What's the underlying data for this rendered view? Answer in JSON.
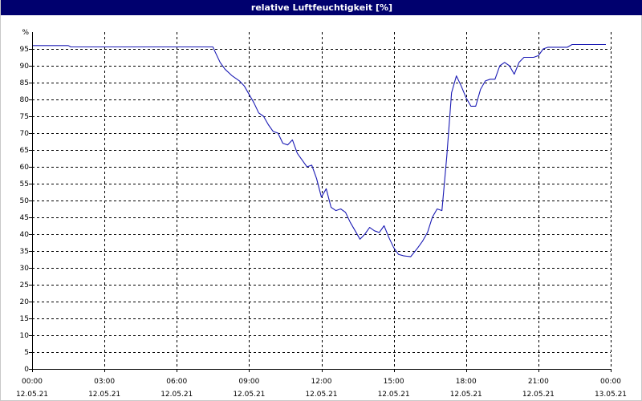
{
  "title": "relative Luftfeuchtigkeit [%]",
  "colors": {
    "title_bg": "#00006e",
    "title_fg": "#ffffff",
    "line": "#1a1ab4",
    "grid": "#000000"
  },
  "chart_data": {
    "type": "line",
    "title": "relative Luftfeuchtigkeit [%]",
    "ylabel": "%",
    "ylim": [
      0,
      100
    ],
    "yticks": [
      0,
      5,
      10,
      15,
      20,
      25,
      30,
      35,
      40,
      45,
      50,
      55,
      60,
      65,
      70,
      75,
      80,
      85,
      90,
      95
    ],
    "xlim": [
      0,
      24
    ],
    "x_unit": "hours since 12.05.21 00:00",
    "xticks": [
      {
        "x": 0,
        "time": "00:00",
        "date": "12.05.21"
      },
      {
        "x": 3,
        "time": "03:00",
        "date": "12.05.21"
      },
      {
        "x": 6,
        "time": "06:00",
        "date": "12.05.21"
      },
      {
        "x": 9,
        "time": "09:00",
        "date": "12.05.21"
      },
      {
        "x": 12,
        "time": "12:00",
        "date": "12.05.21"
      },
      {
        "x": 15,
        "time": "15:00",
        "date": "12.05.21"
      },
      {
        "x": 18,
        "time": "18:00",
        "date": "12.05.21"
      },
      {
        "x": 21,
        "time": "21:00",
        "date": "12.05.21"
      },
      {
        "x": 24,
        "time": "00:00",
        "date": "13.05.21"
      }
    ],
    "grid": true,
    "series": [
      {
        "x": [
          0,
          1.5,
          1.6,
          7.5,
          7.6,
          7.8,
          8.0,
          8.3,
          8.6,
          8.8,
          9.0,
          9.2,
          9.4,
          9.6,
          9.8,
          10.0,
          10.2,
          10.4,
          10.6,
          10.8,
          11.0,
          11.2,
          11.4,
          11.6,
          11.8,
          12.0,
          12.2,
          12.4,
          12.6,
          12.8,
          13.0,
          13.2,
          13.4,
          13.6,
          13.8,
          14.0,
          14.2,
          14.4,
          14.6,
          14.8,
          15.0,
          15.2,
          15.4,
          15.7,
          16.0,
          16.2,
          16.4,
          16.6,
          16.8,
          17.0,
          17.2,
          17.4,
          17.6,
          17.8,
          18.0,
          18.2,
          18.4,
          18.6,
          18.8,
          19.0,
          19.2,
          19.4,
          19.6,
          19.8,
          20.0,
          20.2,
          20.4,
          20.6,
          20.8,
          21.0,
          21.2,
          21.4,
          21.6,
          21.8,
          22.0,
          22.2,
          22.4,
          22.6,
          23.0,
          23.4,
          23.8
        ],
        "y": [
          96,
          96,
          95.6,
          95.6,
          94,
          91,
          89,
          87,
          85.5,
          84,
          81.5,
          79,
          76,
          75,
          72.5,
          70.5,
          70,
          67,
          66.5,
          68,
          64,
          62,
          60,
          60.5,
          56.5,
          51,
          53.5,
          48,
          47,
          47.5,
          46.5,
          43.5,
          41,
          38.5,
          40,
          42,
          41,
          40.5,
          42.5,
          39,
          36,
          34,
          33.6,
          33.3,
          36,
          38,
          40.5,
          45,
          47.5,
          47,
          63,
          82,
          87,
          84,
          80.5,
          78,
          78,
          83,
          85.5,
          86,
          86,
          90,
          91,
          90,
          87.5,
          91,
          92.5,
          92.5,
          92.5,
          93,
          95,
          95.5,
          95.5,
          95.5,
          95.5,
          95.5,
          96.3,
          96.3,
          96.3,
          96.3,
          96.3
        ]
      }
    ]
  }
}
